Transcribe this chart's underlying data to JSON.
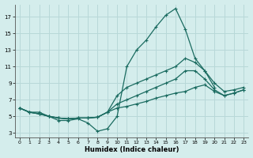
{
  "xlabel": "Humidex (Indice chaleur)",
  "xlim": [
    -0.5,
    23.5
  ],
  "ylim": [
    2.5,
    18.5
  ],
  "xticks": [
    0,
    1,
    2,
    3,
    4,
    5,
    6,
    7,
    8,
    9,
    10,
    11,
    12,
    13,
    14,
    15,
    16,
    17,
    18,
    19,
    20,
    21,
    22,
    23
  ],
  "yticks": [
    3,
    5,
    7,
    9,
    11,
    13,
    15,
    17
  ],
  "bg_color": "#d4edec",
  "line_color": "#1a6b60",
  "grid_color": "#b8d8d8",
  "lines": [
    {
      "x": [
        0,
        1,
        2,
        3,
        4,
        5,
        6,
        7,
        8,
        9,
        10,
        11,
        12,
        13,
        14,
        15,
        16,
        17,
        18,
        19,
        20
      ],
      "y": [
        6.0,
        5.5,
        5.5,
        5.0,
        4.5,
        4.5,
        4.7,
        4.2,
        3.2,
        3.5,
        5.0,
        11.0,
        13.0,
        14.2,
        15.8,
        17.2,
        18.0,
        15.5,
        12.0,
        10.5,
        8.5
      ]
    },
    {
      "x": [
        0,
        1,
        2,
        3,
        4,
        5,
        6,
        7,
        8,
        9,
        10,
        11,
        12,
        13,
        14,
        15,
        16,
        17,
        18,
        19,
        20,
        21,
        22,
        23
      ],
      "y": [
        6.0,
        5.5,
        5.3,
        5.0,
        4.8,
        4.7,
        4.8,
        4.8,
        4.9,
        5.5,
        7.5,
        8.5,
        9.0,
        9.5,
        10.0,
        10.5,
        11.0,
        12.0,
        11.5,
        10.5,
        9.0,
        8.0,
        8.2,
        8.5
      ]
    },
    {
      "x": [
        0,
        1,
        2,
        3,
        4,
        5,
        6,
        7,
        8,
        9,
        10,
        11,
        12,
        13,
        14,
        15,
        16,
        17,
        18,
        19,
        20,
        21,
        22,
        23
      ],
      "y": [
        6.0,
        5.5,
        5.3,
        5.0,
        4.8,
        4.7,
        4.8,
        4.8,
        4.9,
        5.5,
        6.5,
        7.0,
        7.5,
        8.0,
        8.5,
        9.0,
        9.5,
        10.5,
        10.5,
        9.5,
        8.2,
        7.5,
        7.8,
        8.2
      ]
    },
    {
      "x": [
        0,
        1,
        2,
        3,
        4,
        5,
        6,
        7,
        8,
        9,
        10,
        11,
        12,
        13,
        14,
        15,
        16,
        17,
        18,
        19,
        20,
        21,
        22,
        23
      ],
      "y": [
        6.0,
        5.5,
        5.3,
        5.0,
        4.8,
        4.7,
        4.8,
        4.8,
        4.9,
        5.5,
        6.0,
        6.2,
        6.5,
        6.8,
        7.2,
        7.5,
        7.8,
        8.0,
        8.5,
        8.8,
        8.0,
        7.5,
        7.8,
        8.2
      ]
    }
  ]
}
